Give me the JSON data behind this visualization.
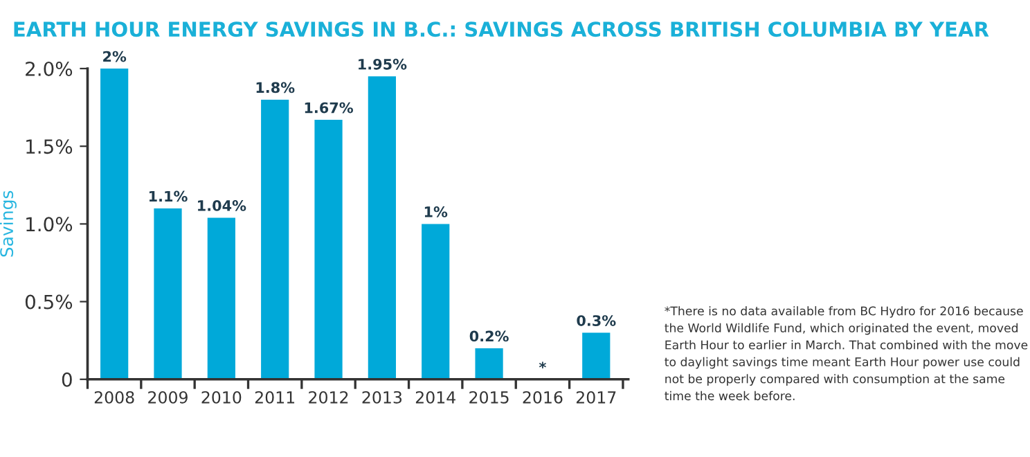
{
  "chart_data": {
    "type": "bar",
    "title": "EARTH HOUR ENERGY SAVINGS IN B.C.: SAVINGS ACROSS BRITISH COLUMBIA BY YEAR",
    "ylabel": "Savings",
    "categories": [
      "2008",
      "2009",
      "2010",
      "2011",
      "2012",
      "2013",
      "2014",
      "2015",
      "2016",
      "2017"
    ],
    "values": [
      2,
      1.1,
      1.04,
      1.8,
      1.67,
      1.95,
      1,
      0.2,
      null,
      0.3
    ],
    "value_labels": [
      "2%",
      "1.1%",
      "1.04%",
      "1.8%",
      "1.67%",
      "1.95%",
      "1%",
      "0.2%",
      "*",
      "0.3%"
    ],
    "color": "#00a9d9",
    "ylim": [
      0,
      2.0
    ],
    "yticks": [
      {
        "value": 0,
        "label": "0"
      },
      {
        "value": 0.5,
        "label": "0.5%"
      },
      {
        "value": 1.0,
        "label": "1.0%"
      },
      {
        "value": 1.5,
        "label": "1.5%"
      },
      {
        "value": 2.0,
        "label": "2.0%"
      }
    ],
    "grid": false,
    "annotations": [
      "*There is no data available from BC Hydro for 2016 because the World Wildlife Fund, which originated the event, moved Earth Hour to earlier in March. That combined with the move to daylight savings time meant Earth Hour power use could not be properly compared with consumption at the same time the week before."
    ]
  }
}
